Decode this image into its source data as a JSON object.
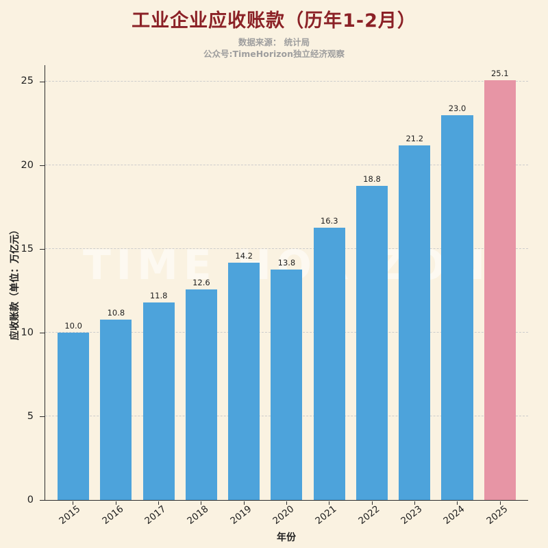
{
  "chart_data": {
    "type": "bar",
    "title": "工业企业应收账款（历年1-2月）",
    "source_line": "数据来源： 统计局",
    "account_line": "公众号:TimeHorizon独立经济观察",
    "watermark": "TIME HORIZON",
    "xlabel": "年份",
    "ylabel": "应收账款（单位：万亿元）",
    "categories": [
      "2015",
      "2016",
      "2017",
      "2018",
      "2019",
      "2020",
      "2021",
      "2022",
      "2023",
      "2024",
      "2025"
    ],
    "values": [
      10.0,
      10.8,
      11.8,
      12.6,
      14.2,
      13.8,
      16.3,
      18.8,
      21.2,
      23.0,
      25.1
    ],
    "yticks": [
      0,
      5,
      10,
      15,
      20,
      25
    ],
    "ylim": [
      0,
      26
    ],
    "highlight_index": 10,
    "grid": "dashed-horizontal",
    "legend": "none",
    "colors": {
      "background": "#FAF2E1",
      "bar": "#4DA3DB",
      "highlight_bar": "#E795A5",
      "title": "#8B2126",
      "subtitle": "#9E9E9E",
      "grid": "#CCCCCC",
      "axis": "#2B2B2B",
      "watermark": "rgba(255,255,255,0.55)"
    }
  }
}
